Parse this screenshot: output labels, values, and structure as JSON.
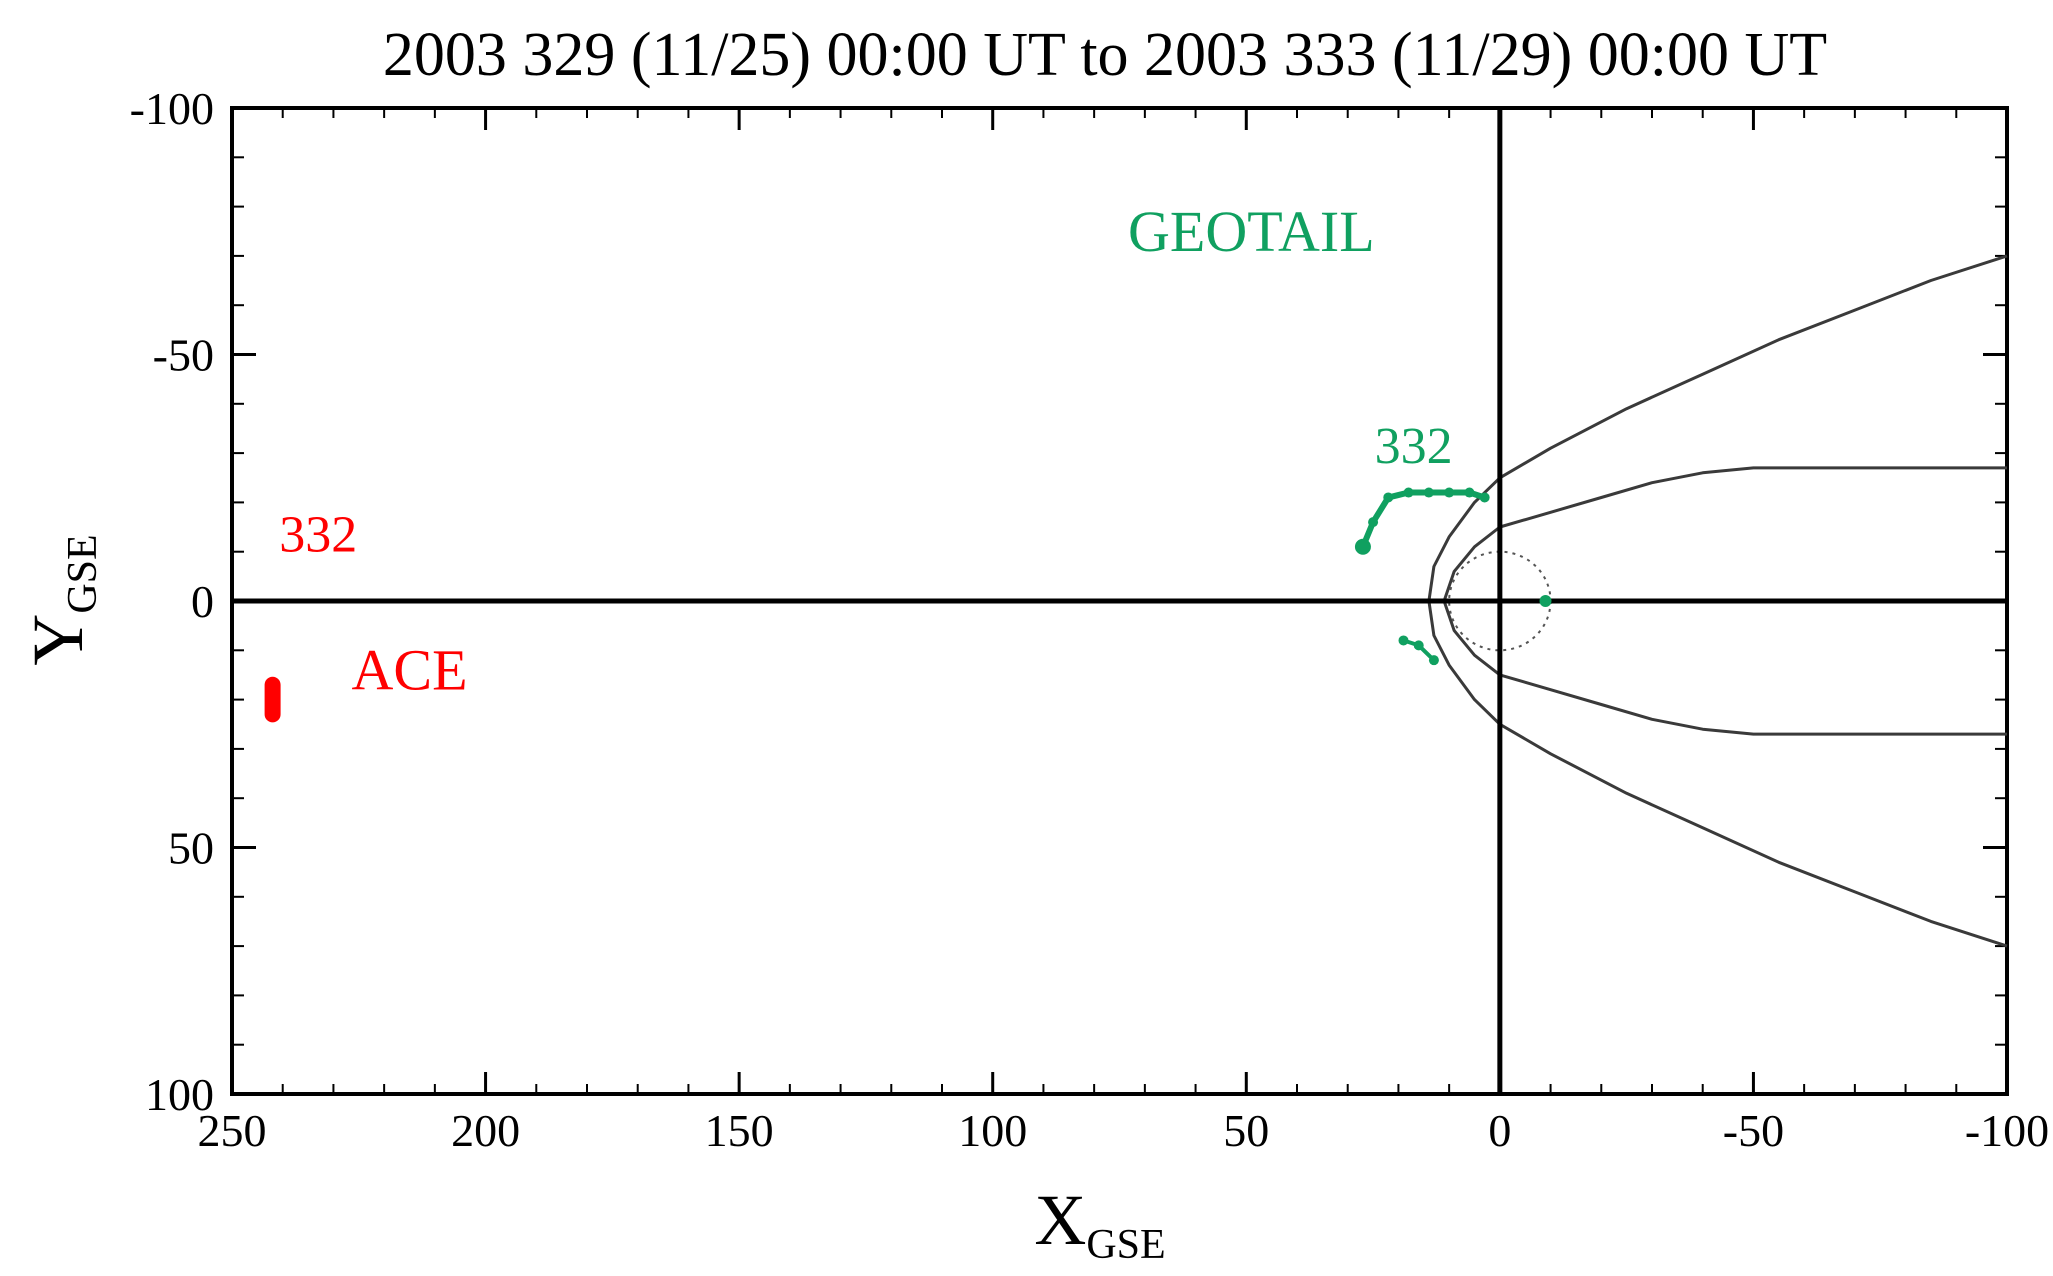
{
  "chart_data": {
    "type": "scatter",
    "title": "2003 329 (11/25) 00:00 UT to 2003 333 (11/29) 00:00 UT",
    "xlabel": {
      "main": "X",
      "sub": "GSE"
    },
    "ylabel": {
      "main": "Y",
      "sub": "GSE"
    },
    "xlim": [
      250,
      -100
    ],
    "ylim": [
      -100,
      100
    ],
    "x_ticks": [
      250,
      200,
      150,
      100,
      50,
      0,
      -50,
      -100
    ],
    "x_tick_labels": [
      "250",
      "200",
      "150",
      "100",
      "50",
      "0",
      "-50",
      "-100"
    ],
    "y_ticks": [
      -100,
      -50,
      0,
      50,
      100
    ],
    "y_tick_labels": [
      "-100",
      "-50",
      "0",
      "50",
      "100"
    ],
    "x_minor_step": 10,
    "y_minor_step": 10,
    "axes_lines": {
      "x0": true,
      "y0": true
    },
    "grid": false,
    "colors": {
      "geotail": "#10a060",
      "ace": "#ff0000",
      "boundary": "#3a3a3a",
      "axis": "#000000"
    },
    "series": [
      {
        "name": "GEOTAIL",
        "color": "#10a060",
        "x": [
          27,
          25,
          22,
          18,
          14,
          10,
          6,
          3
        ],
        "y": [
          -11,
          -16,
          -21,
          -22,
          -22,
          -22,
          -22,
          -21
        ]
      },
      {
        "name": "ACE",
        "color": "#ff0000",
        "x": [
          242,
          242
        ],
        "y": [
          17,
          23
        ]
      }
    ],
    "geotail_extra": {
      "x": [
        19,
        16,
        13
      ],
      "y": [
        8,
        9,
        12
      ]
    },
    "boundaries": [
      {
        "kind": "bow-shock",
        "x": [
          -100,
          -85,
          -70,
          -55,
          -40,
          -25,
          -10,
          0,
          5,
          10,
          13,
          14,
          13,
          10,
          5,
          0,
          -10,
          -25,
          -40,
          -55,
          -70,
          -85,
          -100
        ],
        "y": [
          -70,
          -65,
          -59,
          -53,
          -46,
          -39,
          -31,
          -25,
          -20,
          -13,
          -7,
          0,
          7,
          13,
          20,
          25,
          31,
          39,
          46,
          53,
          59,
          65,
          70
        ]
      },
      {
        "kind": "magnetopause",
        "x": [
          -100,
          -85,
          -70,
          -50,
          -40,
          -30,
          -20,
          -10,
          0,
          5,
          9,
          11,
          9,
          5,
          0,
          -10,
          -20,
          -30,
          -40,
          -50,
          -70,
          -85,
          -100
        ],
        "y": [
          -27,
          -27,
          -27,
          -27,
          -26,
          -24,
          -21,
          -18,
          -15,
          -11,
          -6,
          0,
          6,
          11,
          15,
          18,
          21,
          24,
          26,
          27,
          27,
          27,
          27
        ]
      }
    ],
    "moon_orbit": {
      "cx": 0,
      "cy": 0,
      "r": 10
    },
    "annotations": [
      {
        "id": "geotail-name",
        "text": "GEOTAIL",
        "x": 49,
        "y": -71,
        "color": "#10a060"
      },
      {
        "id": "geotail-day",
        "text": "332",
        "x": 17,
        "y": -28,
        "color": "#10a060"
      },
      {
        "id": "ace-day",
        "text": "332",
        "x": 233,
        "y": -10,
        "color": "#ff0000"
      },
      {
        "id": "ace-name",
        "text": "ACE",
        "x": 215,
        "y": 18,
        "color": "#ff0000"
      }
    ]
  }
}
